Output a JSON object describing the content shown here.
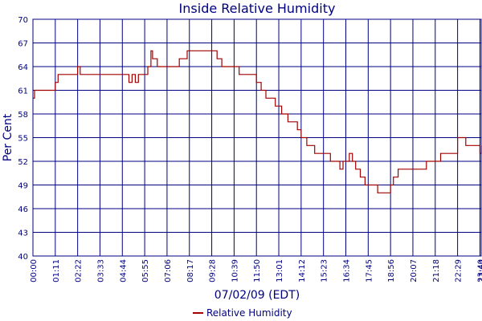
{
  "chart_data": {
    "type": "line",
    "title": "Inside Relative Humidity",
    "xlabel": "07/02/09 (EDT)",
    "ylabel": "Per Cent",
    "ylim": [
      40,
      70
    ],
    "yticks": [
      "40",
      "43",
      "46",
      "49",
      "52",
      "55",
      "58",
      "61",
      "64",
      "67",
      "70"
    ],
    "xticks": [
      "00:00",
      "01:11",
      "02:22",
      "03:33",
      "04:44",
      "05:55",
      "07:06",
      "08:17",
      "09:28",
      "10:39",
      "11:50",
      "13:01",
      "14:12",
      "15:23",
      "16:34",
      "17:45",
      "18:56",
      "20:07",
      "21:18",
      "22:29",
      "23:40",
      "23:44"
    ],
    "grid": true,
    "legend_position": "bottom-center",
    "series": [
      {
        "name": "Relative Humidity",
        "color": "#a00000",
        "x": [
          "00:00",
          "00:05",
          "00:30",
          "00:55",
          "01:11",
          "01:20",
          "01:40",
          "02:00",
          "02:22",
          "02:30",
          "03:00",
          "03:33",
          "04:00",
          "04:44",
          "05:00",
          "05:05",
          "05:15",
          "05:25",
          "05:35",
          "05:55",
          "06:05",
          "06:15",
          "06:20",
          "06:35",
          "07:00",
          "07:30",
          "07:45",
          "08:00",
          "08:10",
          "08:17",
          "08:40",
          "09:00",
          "09:28",
          "09:45",
          "10:00",
          "10:20",
          "10:39",
          "10:55",
          "11:20",
          "11:50",
          "12:05",
          "12:10",
          "12:20",
          "12:40",
          "12:50",
          "13:01",
          "13:10",
          "13:20",
          "13:30",
          "13:40",
          "14:00",
          "14:12",
          "14:20",
          "14:30",
          "14:40",
          "14:55",
          "15:15",
          "15:23",
          "15:45",
          "16:00",
          "16:15",
          "16:25",
          "16:34",
          "16:45",
          "16:55",
          "17:05",
          "17:20",
          "17:35",
          "17:45",
          "18:00",
          "18:15",
          "18:35",
          "18:56",
          "19:05",
          "19:20",
          "19:35",
          "19:55",
          "20:07",
          "20:20",
          "20:35",
          "20:50",
          "21:05",
          "21:18",
          "21:35",
          "21:55",
          "22:15",
          "22:25",
          "22:29",
          "22:40",
          "22:55",
          "23:10",
          "23:25",
          "23:35",
          "23:40",
          "23:44"
        ],
        "values": [
          60,
          61,
          61,
          61,
          62,
          63,
          63,
          63,
          64,
          63,
          63,
          63,
          63,
          63,
          63,
          62,
          63,
          62,
          63,
          63,
          64,
          66,
          65,
          64,
          64,
          64,
          65,
          65,
          66,
          66,
          66,
          66,
          66,
          65,
          64,
          64,
          64,
          63,
          63,
          62,
          61,
          61,
          60,
          60,
          59,
          59,
          58,
          58,
          57,
          57,
          56,
          55,
          55,
          54,
          54,
          53,
          53,
          53,
          52,
          52,
          51,
          52,
          52,
          53,
          52,
          51,
          50,
          49,
          49,
          49,
          48,
          48,
          49,
          50,
          51,
          51,
          51,
          51,
          51,
          51,
          52,
          52,
          52,
          53,
          53,
          53,
          53,
          55,
          55,
          54,
          54,
          54,
          54,
          53,
          54
        ]
      }
    ]
  }
}
